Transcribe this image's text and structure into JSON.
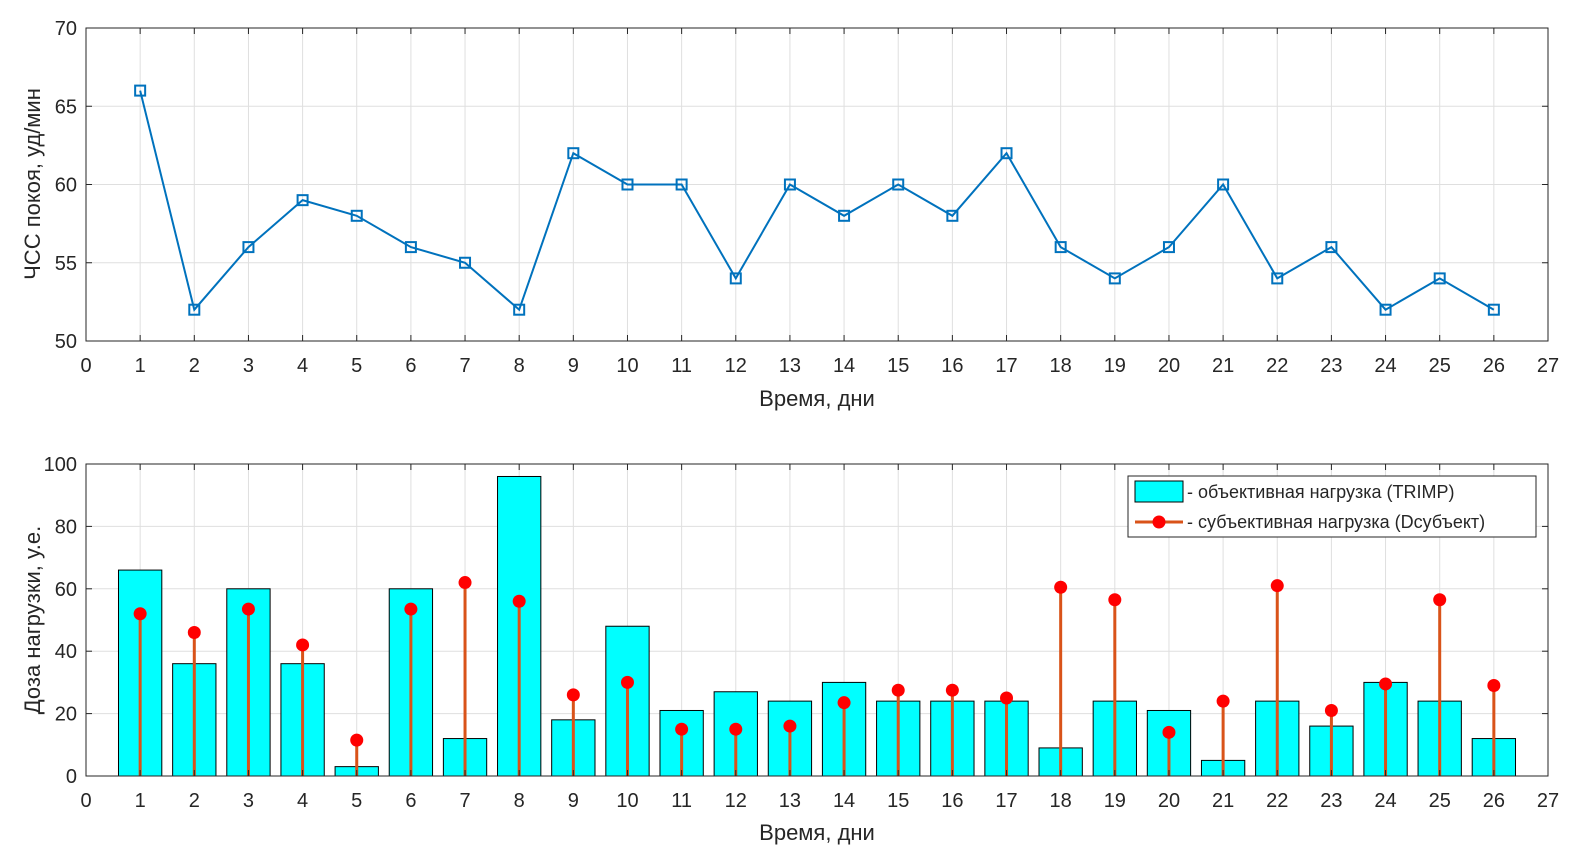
{
  "chart_data": [
    {
      "type": "line",
      "title": "",
      "xlabel": "Время, дни",
      "ylabel": "ЧСС покоя, уд/мин",
      "xlim": [
        0,
        27
      ],
      "ylim": [
        50,
        70
      ],
      "xticks": [
        0,
        1,
        2,
        3,
        4,
        5,
        6,
        7,
        8,
        9,
        10,
        11,
        12,
        13,
        14,
        15,
        16,
        17,
        18,
        19,
        20,
        21,
        22,
        23,
        24,
        25,
        26,
        27
      ],
      "yticks": [
        50,
        55,
        60,
        65,
        70
      ],
      "grid": true,
      "series": [
        {
          "name": "ЧСС покоя",
          "marker": "square",
          "color": "#0072BD",
          "x": [
            1,
            2,
            3,
            4,
            5,
            6,
            7,
            8,
            9,
            10,
            11,
            12,
            13,
            14,
            15,
            16,
            17,
            18,
            19,
            20,
            21,
            22,
            23,
            24,
            25,
            26
          ],
          "y": [
            66,
            52,
            56,
            59,
            58,
            56,
            55,
            52,
            62,
            60,
            60,
            54,
            60,
            58,
            60,
            58,
            62,
            56,
            54,
            56,
            60,
            54,
            56,
            52,
            54,
            52
          ]
        }
      ]
    },
    {
      "type": "bar",
      "title": "",
      "xlabel": "Время, дни",
      "ylabel": "Доза нагрузки, у.е.",
      "xlim": [
        0,
        27
      ],
      "ylim": [
        0,
        100
      ],
      "xticks": [
        0,
        1,
        2,
        3,
        4,
        5,
        6,
        7,
        8,
        9,
        10,
        11,
        12,
        13,
        14,
        15,
        16,
        17,
        18,
        19,
        20,
        21,
        22,
        23,
        24,
        25,
        26,
        27
      ],
      "yticks": [
        0,
        20,
        40,
        60,
        80,
        100
      ],
      "grid": true,
      "legend_position": "top-right",
      "categories": [
        1,
        2,
        3,
        4,
        5,
        6,
        7,
        8,
        9,
        10,
        11,
        12,
        13,
        14,
        15,
        16,
        17,
        18,
        19,
        20,
        21,
        22,
        23,
        24,
        25,
        26
      ],
      "series": [
        {
          "name": "- объективная нагрузка (TRIMP)",
          "type": "bar",
          "color": "#00FFFF",
          "values": [
            66,
            36,
            60,
            36,
            3,
            60,
            12,
            96,
            18,
            48,
            21,
            27,
            24,
            30,
            24,
            24,
            24,
            9,
            24,
            21,
            5,
            24,
            16,
            30,
            24,
            12
          ]
        },
        {
          "name": "- субъективная нагрузка (Dсубъект)",
          "type": "stem",
          "color": "#FF0000",
          "stem_color": "#D95319",
          "values": [
            52,
            46,
            53.5,
            42,
            11.5,
            53.5,
            62,
            56,
            26,
            30,
            15,
            15,
            16,
            23.5,
            27.5,
            27.5,
            25,
            60.5,
            56.5,
            14,
            24,
            61,
            21,
            29.5,
            56.5,
            29
          ]
        }
      ]
    }
  ]
}
